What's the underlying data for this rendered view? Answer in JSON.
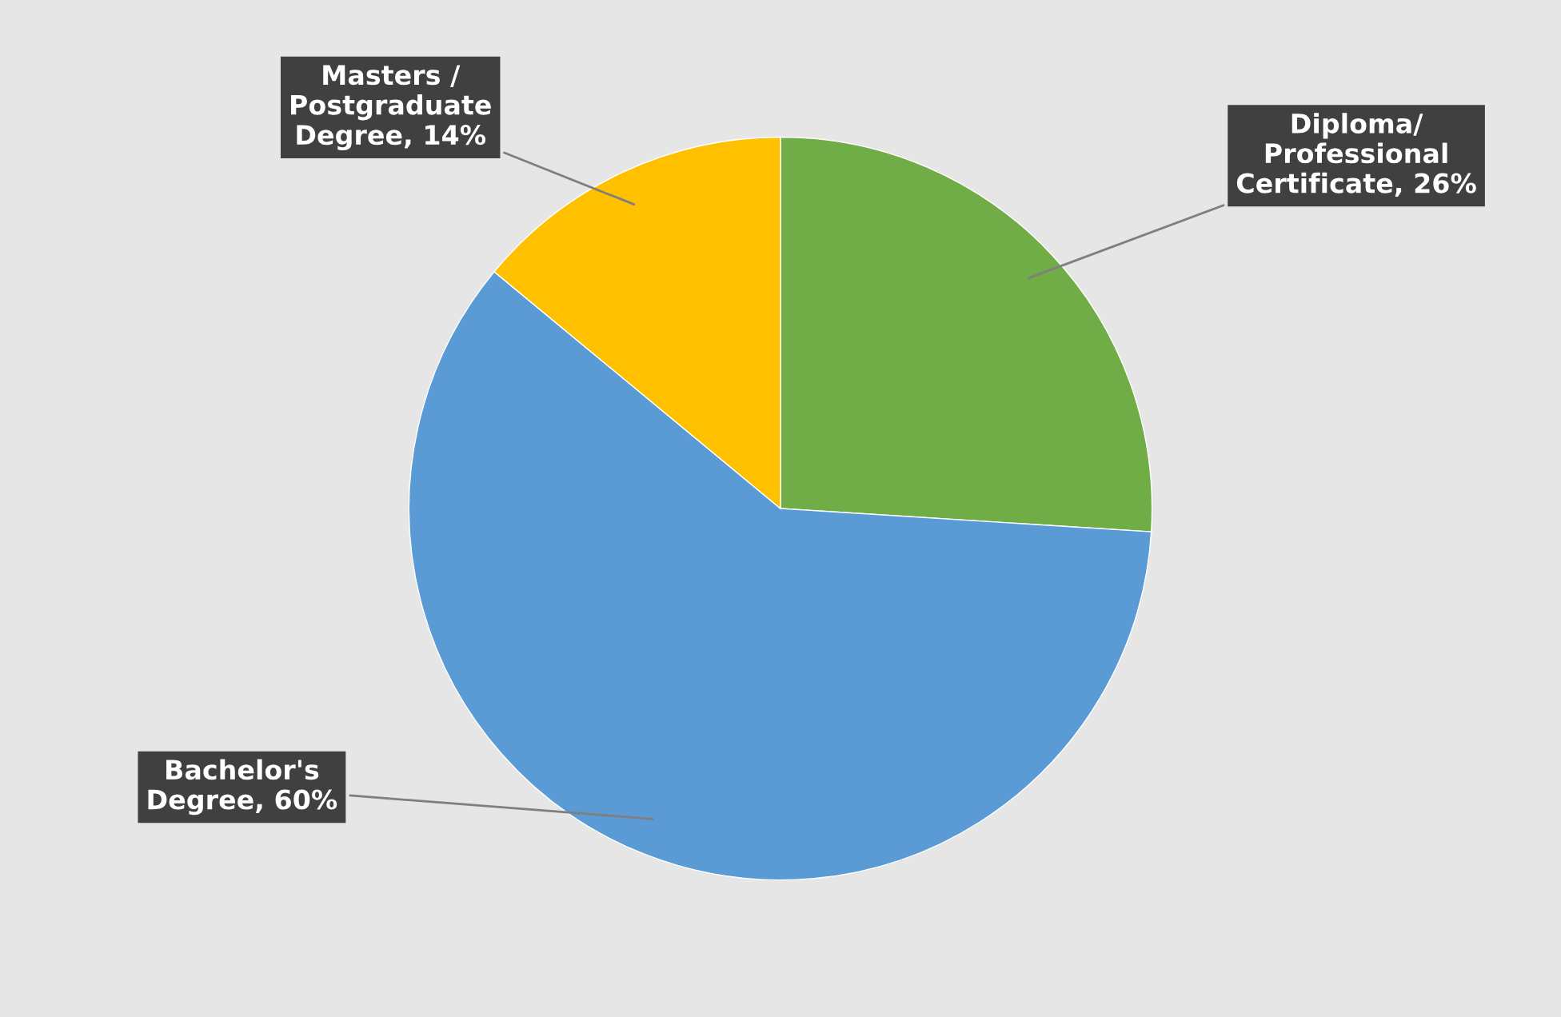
{
  "chart_data": {
    "type": "pie",
    "categories": [
      "Diploma/\nProfessional\nCertificate",
      "Bachelor's\nDegree",
      "Masters /\nPostgraduate\nDegree"
    ],
    "values": [
      26,
      60,
      14
    ],
    "value_labels": [
      "26%",
      "60%",
      "14%"
    ],
    "colors": [
      "#70ad47",
      "#5b9bd5",
      "#ffc000"
    ]
  }
}
